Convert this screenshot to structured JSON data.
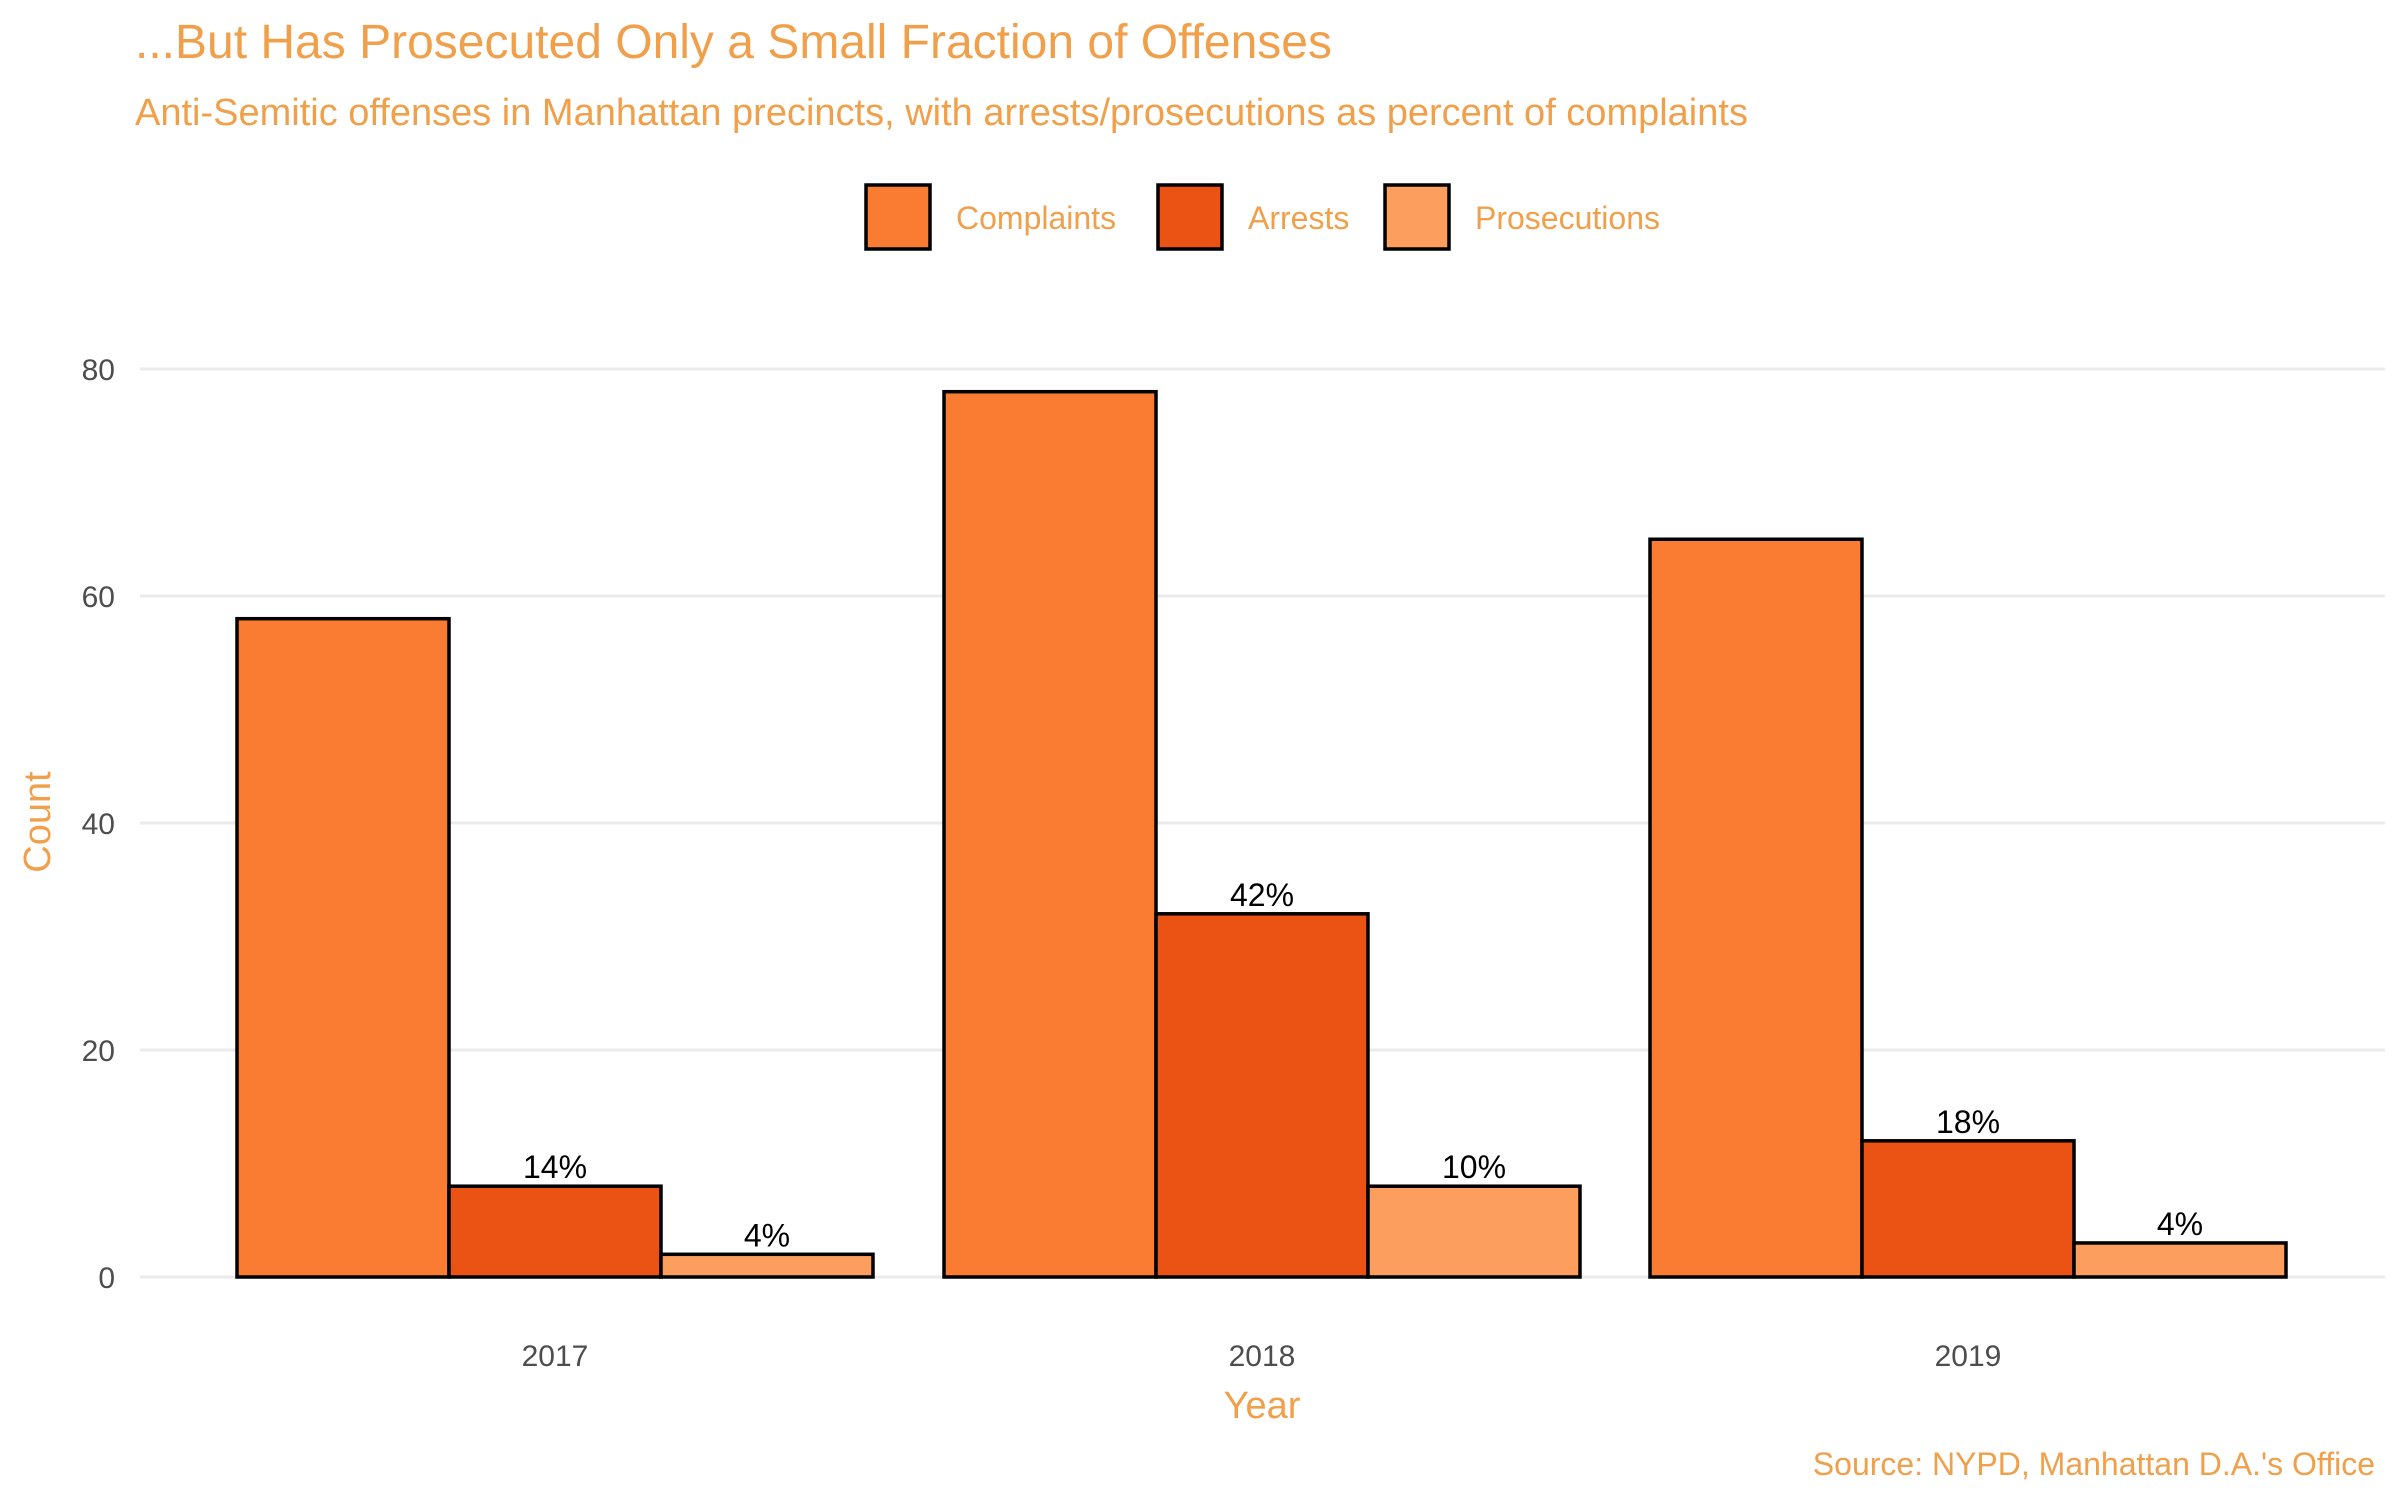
{
  "colors": {
    "title": "#F0A04B",
    "complaints": "#FA7B32",
    "arrests": "#EA5313",
    "prosecutions": "#FC9E5E",
    "bar_stroke": "#000000",
    "grid": "#EBEBEB"
  },
  "chart_data": {
    "type": "bar",
    "title": "...But Has Prosecuted Only a Small Fraction of Offenses",
    "subtitle": "Anti-Semitic offenses in Manhattan precincts, with arrests/prosecutions as percent of complaints",
    "caption": "Source: NYPD, Manhattan D.A.'s Office",
    "xlabel": "Year",
    "ylabel": "Count",
    "categories": [
      "2017",
      "2018",
      "2019"
    ],
    "series": [
      {
        "name": "Complaints",
        "values": [
          58,
          78,
          65
        ],
        "labels": [
          "",
          "",
          ""
        ]
      },
      {
        "name": "Arrests",
        "values": [
          8,
          32,
          12
        ],
        "labels": [
          "14%",
          "42%",
          "18%"
        ]
      },
      {
        "name": "Prosecutions",
        "values": [
          2,
          8,
          3
        ],
        "labels": [
          "4%",
          "10%",
          "4%"
        ]
      }
    ],
    "ylim": [
      0,
      90
    ],
    "yticks": [
      0,
      20,
      40,
      60,
      80
    ],
    "legend_position": "top",
    "grid": true
  }
}
